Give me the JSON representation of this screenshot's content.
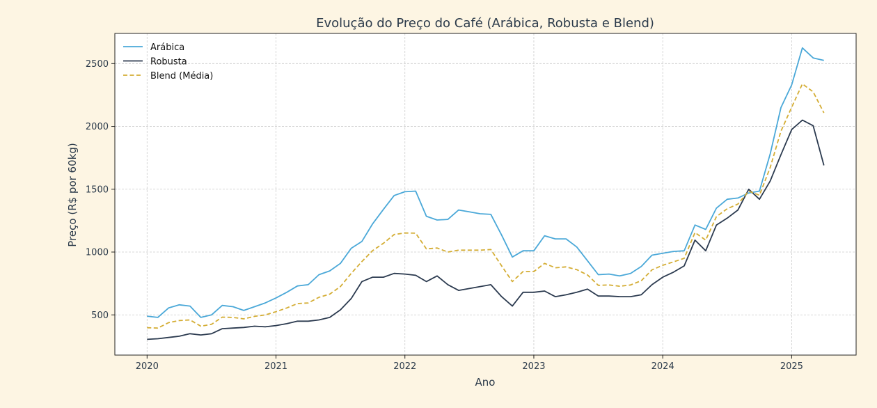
{
  "chart_data": {
    "type": "line",
    "title": "Evolução do Preço do Café (Arábica, Robusta e Blend)",
    "xlabel": "Ano",
    "ylabel": "Preço (R$ por 60kg)",
    "x_ticks": [
      "2020",
      "2021",
      "2022",
      "2023",
      "2024",
      "2025"
    ],
    "y_ticks": [
      "500",
      "1000",
      "1500",
      "2000",
      "2500"
    ],
    "xlim": [
      "2019-10",
      "2025-07"
    ],
    "ylim": [
      180,
      2740
    ],
    "grid": true,
    "legend_position": "top-left",
    "x": [
      "2020-01",
      "2020-02",
      "2020-03",
      "2020-04",
      "2020-05",
      "2020-06",
      "2020-07",
      "2020-08",
      "2020-09",
      "2020-10",
      "2020-11",
      "2020-12",
      "2021-01",
      "2021-02",
      "2021-03",
      "2021-04",
      "2021-05",
      "2021-06",
      "2021-07",
      "2021-08",
      "2021-09",
      "2021-10",
      "2021-11",
      "2021-12",
      "2022-01",
      "2022-02",
      "2022-03",
      "2022-04",
      "2022-05",
      "2022-06",
      "2022-07",
      "2022-08",
      "2022-09",
      "2022-10",
      "2022-11",
      "2022-12",
      "2023-01",
      "2023-02",
      "2023-03",
      "2023-04",
      "2023-05",
      "2023-06",
      "2023-07",
      "2023-08",
      "2023-09",
      "2023-10",
      "2023-11",
      "2023-12",
      "2024-01",
      "2024-02",
      "2024-03",
      "2024-04",
      "2024-05",
      "2024-06",
      "2024-07",
      "2024-08",
      "2024-09",
      "2024-10",
      "2024-11",
      "2024-12",
      "2025-01",
      "2025-02",
      "2025-03",
      "2025-04",
      "2025-05"
    ],
    "series": [
      {
        "name": "Arábica",
        "color": "#4aa8d8",
        "style": "solid",
        "values": [
          490,
          480,
          555,
          580,
          570,
          480,
          500,
          575,
          565,
          535,
          565,
          595,
          635,
          680,
          730,
          740,
          820,
          850,
          910,
          1030,
          1085,
          1225,
          1340,
          1450,
          1480,
          1485,
          1285,
          1255,
          1260,
          1335,
          1320,
          1305,
          1300,
          1135,
          960,
          1010,
          1010,
          1130,
          1105,
          1105,
          1040,
          930,
          820,
          825,
          810,
          830,
          885,
          975,
          990,
          1005,
          1010,
          1215,
          1180,
          1350,
          1420,
          1430,
          1470,
          1485,
          1780,
          2150,
          2330,
          2625,
          2545,
          2525,
          null
        ]
      },
      {
        "name": "Robusta",
        "color": "#2b3a4f",
        "style": "solid",
        "values": [
          305,
          310,
          320,
          330,
          350,
          340,
          350,
          390,
          395,
          400,
          410,
          405,
          415,
          430,
          450,
          450,
          460,
          480,
          540,
          630,
          765,
          800,
          800,
          830,
          825,
          815,
          765,
          810,
          740,
          695,
          710,
          725,
          740,
          645,
          570,
          680,
          680,
          690,
          645,
          660,
          680,
          705,
          650,
          650,
          645,
          645,
          660,
          740,
          800,
          840,
          890,
          1095,
          1010,
          1215,
          1270,
          1335,
          1500,
          1420,
          1565,
          1775,
          1975,
          2050,
          2005,
          1690,
          null
        ]
      },
      {
        "name": "Blend (Média)",
        "color": "#d4ad34",
        "style": "dashed",
        "values": [
          398,
          395,
          438,
          455,
          460,
          410,
          425,
          482,
          480,
          468,
          488,
          500,
          525,
          555,
          590,
          595,
          640,
          665,
          725,
          830,
          925,
          1012,
          1070,
          1140,
          1152,
          1150,
          1025,
          1032,
          1000,
          1015,
          1015,
          1015,
          1020,
          890,
          765,
          845,
          845,
          910,
          875,
          882,
          860,
          818,
          735,
          738,
          728,
          738,
          772,
          858,
          895,
          922,
          950,
          1155,
          1095,
          1282,
          1345,
          1382,
          1485,
          1452,
          1672,
          1962,
          2152,
          2338,
          2275,
          2108,
          null
        ]
      }
    ]
  }
}
